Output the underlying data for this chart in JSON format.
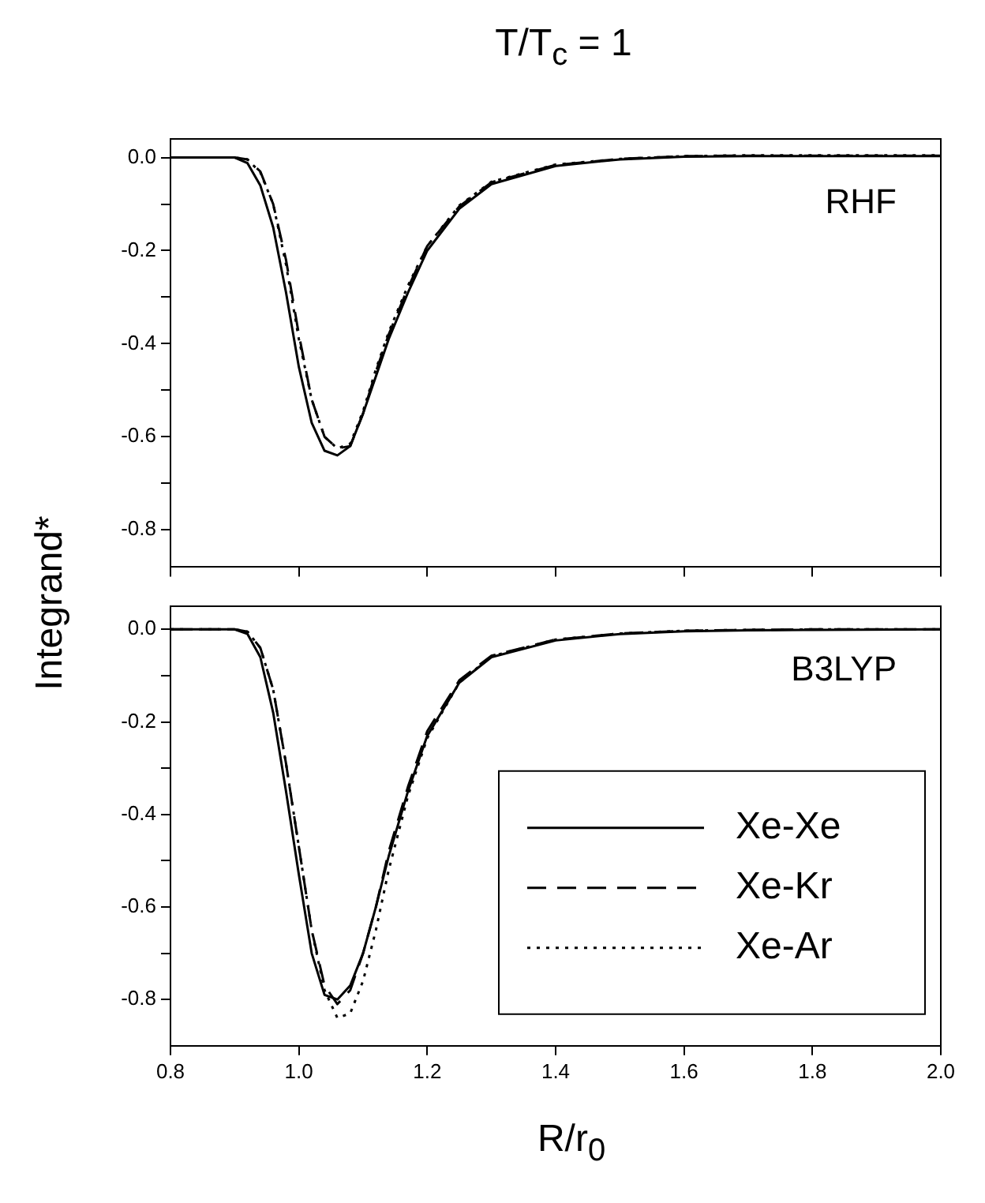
{
  "chart_data": [
    {
      "type": "line",
      "title": "T/T$_{c}$ = 1",
      "ylabel": "Integrand*",
      "annotations": [
        "RHF"
      ],
      "tick_labels": "y",
      "grid": false,
      "legend": false,
      "marker": "none",
      "x": [
        0.8,
        0.9,
        0.92,
        0.94,
        0.96,
        0.98,
        1.0,
        1.02,
        1.04,
        1.06,
        1.08,
        1.1,
        1.12,
        1.14,
        1.17,
        1.2,
        1.25,
        1.3,
        1.4,
        1.5,
        1.6,
        1.7,
        1.8,
        2.0
      ],
      "xlim": [
        0.8,
        2.0
      ],
      "xticks": [
        {
          "value": 0.8,
          "label": null
        },
        {
          "value": 1.0,
          "label": null
        },
        {
          "value": 1.2,
          "label": null
        },
        {
          "value": 1.4,
          "label": null
        },
        {
          "value": 1.6,
          "label": null
        },
        {
          "value": 1.8,
          "label": null
        },
        {
          "value": 2.0,
          "label": null
        }
      ],
      "ylim": [
        -0.88,
        0.04
      ],
      "yticks": [
        {
          "value": 0,
          "label": "0.0"
        },
        {
          "value": -0.1,
          "label": null
        },
        {
          "value": -0.2,
          "label": "-0.2"
        },
        {
          "value": -0.3,
          "label": null
        },
        {
          "value": -0.4,
          "label": "-0.4"
        },
        {
          "value": -0.5,
          "label": null
        },
        {
          "value": -0.6,
          "label": "-0.6"
        },
        {
          "value": -0.7,
          "label": null
        },
        {
          "value": -0.8,
          "label": "-0.8"
        }
      ],
      "series": [
        {
          "color": "#000000",
          "line_style": "solid",
          "values": [
            0,
            0,
            -0.012,
            -0.06,
            -0.15,
            -0.29,
            -0.45,
            -0.57,
            -0.63,
            -0.64,
            -0.62,
            -0.55,
            -0.47,
            -0.39,
            -0.29,
            -0.2,
            -0.11,
            -0.057,
            -0.018,
            -0.004,
            0.002,
            0.003,
            0.003,
            0.003
          ]
        },
        {
          "color": "#000000",
          "line_style": "dashed",
          "values": [
            0,
            0,
            -0.004,
            -0.03,
            -0.1,
            -0.22,
            -0.38,
            -0.52,
            -0.6,
            -0.625,
            -0.62,
            -0.55,
            -0.46,
            -0.38,
            -0.28,
            -0.19,
            -0.105,
            -0.053,
            -0.016,
            -0.003,
            0.003,
            0.004,
            0.004,
            0.004
          ]
        },
        {
          "color": "#000000",
          "line_style": "dotted",
          "values": [
            0,
            0,
            -0.004,
            -0.032,
            -0.1,
            -0.23,
            -0.39,
            -0.52,
            -0.6,
            -0.625,
            -0.615,
            -0.545,
            -0.455,
            -0.375,
            -0.275,
            -0.19,
            -0.103,
            -0.052,
            -0.015,
            -0.003,
            0.003,
            0.005,
            0.005,
            0.005
          ]
        }
      ]
    },
    {
      "type": "line",
      "xlabel": "R/r$_{0}$",
      "annotations": [
        "B3LYP"
      ],
      "grid": false,
      "legend": "bottom right",
      "marker": "none",
      "x": [
        0.8,
        0.9,
        0.92,
        0.94,
        0.96,
        0.98,
        1.0,
        1.02,
        1.04,
        1.06,
        1.08,
        1.1,
        1.12,
        1.14,
        1.17,
        1.2,
        1.25,
        1.3,
        1.4,
        1.5,
        1.6,
        1.7,
        1.8,
        2.0
      ],
      "xlim": [
        0.8,
        2.0
      ],
      "xticks": [
        {
          "value": 0.8,
          "label": "0.8"
        },
        {
          "value": 1.0,
          "label": "1.0"
        },
        {
          "value": 1.2,
          "label": "1.2"
        },
        {
          "value": 1.4,
          "label": "1.4"
        },
        {
          "value": 1.6,
          "label": "1.6"
        },
        {
          "value": 1.8,
          "label": "1.8"
        },
        {
          "value": 2.0,
          "label": "2.0"
        }
      ],
      "ylim": [
        -0.9,
        0.05
      ],
      "yticks": [
        {
          "value": 0,
          "label": "0.0"
        },
        {
          "value": -0.1,
          "label": null
        },
        {
          "value": -0.2,
          "label": "-0.2"
        },
        {
          "value": -0.3,
          "label": null
        },
        {
          "value": -0.4,
          "label": "-0.4"
        },
        {
          "value": -0.5,
          "label": null
        },
        {
          "value": -0.6,
          "label": "-0.6"
        },
        {
          "value": -0.7,
          "label": null
        },
        {
          "value": -0.8,
          "label": "-0.8"
        }
      ],
      "series": [
        {
          "name": "Xe-Xe",
          "color": "#000000",
          "line_style": "solid",
          "values": [
            0,
            0,
            -0.01,
            -0.06,
            -0.18,
            -0.35,
            -0.53,
            -0.7,
            -0.79,
            -0.8,
            -0.77,
            -0.7,
            -0.6,
            -0.49,
            -0.35,
            -0.23,
            -0.115,
            -0.06,
            -0.024,
            -0.01,
            -0.004,
            -0.002,
            -0.001,
            0
          ]
        },
        {
          "name": "Xe-Kr",
          "color": "#000000",
          "line_style": "dashed",
          "values": [
            0,
            0,
            -0.005,
            -0.04,
            -0.13,
            -0.29,
            -0.47,
            -0.65,
            -0.77,
            -0.81,
            -0.78,
            -0.7,
            -0.6,
            -0.48,
            -0.34,
            -0.22,
            -0.11,
            -0.057,
            -0.022,
            -0.009,
            -0.003,
            -0.001,
            0,
            0
          ]
        },
        {
          "name": "Xe-Ar",
          "color": "#000000",
          "line_style": "dotted",
          "values": [
            0,
            0,
            -0.005,
            -0.04,
            -0.13,
            -0.29,
            -0.47,
            -0.65,
            -0.78,
            -0.84,
            -0.83,
            -0.76,
            -0.65,
            -0.52,
            -0.36,
            -0.235,
            -0.115,
            -0.058,
            -0.022,
            -0.009,
            -0.003,
            -0.001,
            0,
            0
          ]
        }
      ]
    }
  ]
}
